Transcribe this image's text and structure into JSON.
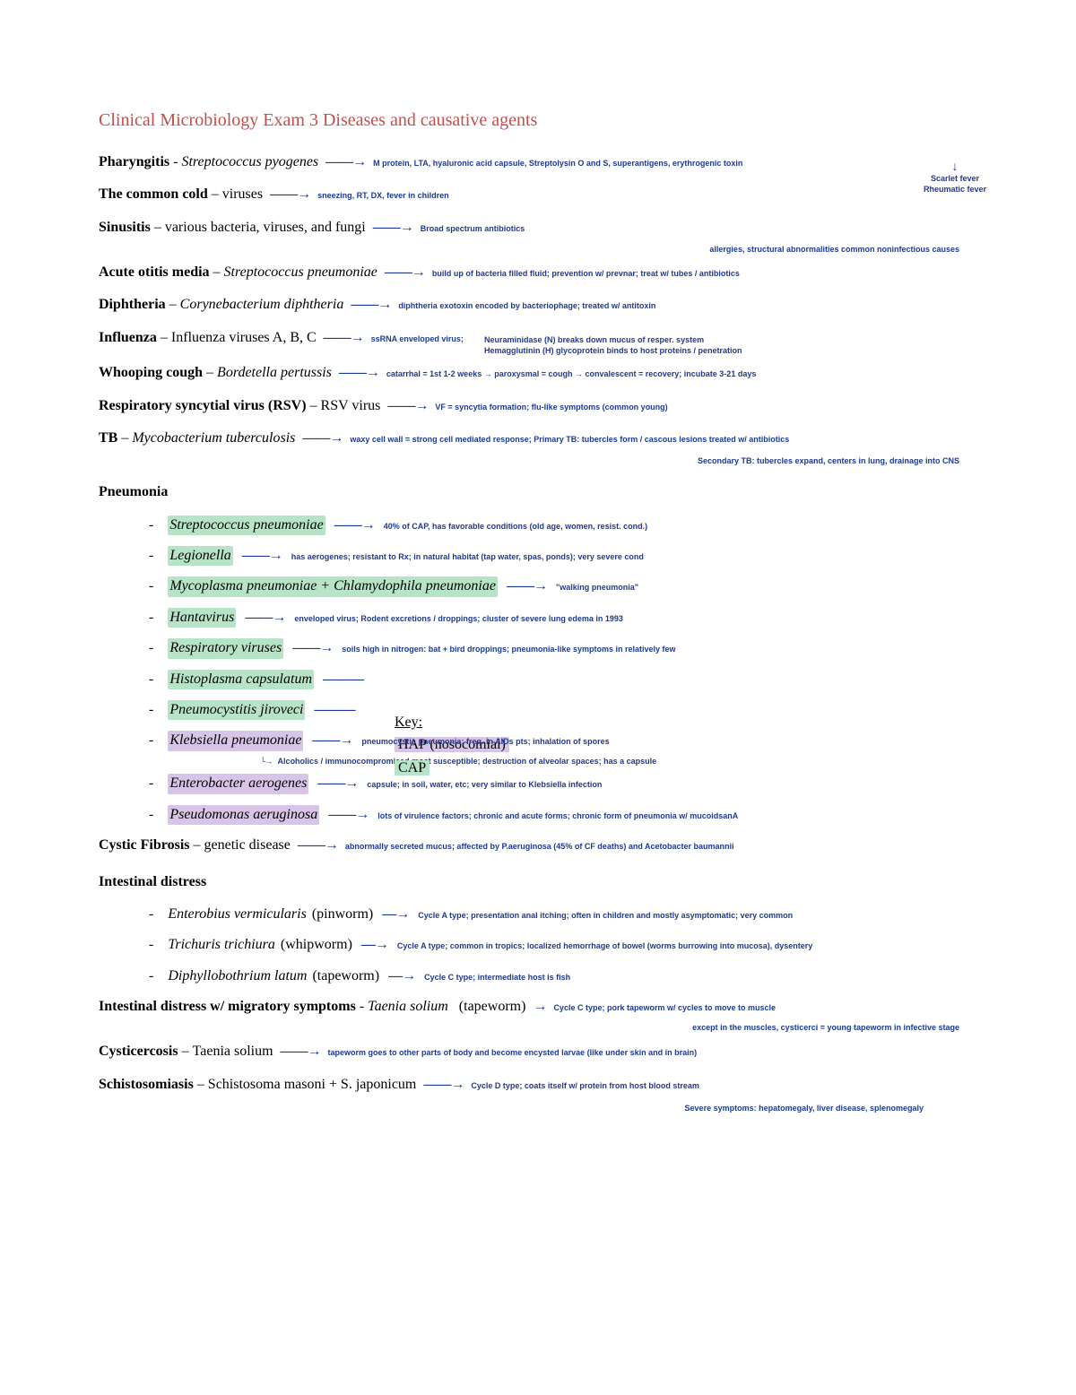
{
  "title": "Clinical Microbiology Exam 3 Diseases and causative agents",
  "side_fever": {
    "line1": "Scarlet fever",
    "line2": "Rheumatic fever"
  },
  "entries": [
    {
      "disease": "Pharyngitis",
      "sep": " - ",
      "agent": "Streptococcus pyogenes",
      "italic": true,
      "note": "M protein, LTA, hyaluronic acid capsule, Streptolysin O and S, superantigens, erythrogenic toxin"
    },
    {
      "disease": "The common cold",
      "sep": " – ",
      "agent": "viruses",
      "italic": false,
      "note": "sneezing, RT, DX, fever in children"
    },
    {
      "disease": "Sinusitis",
      "sep": " – ",
      "agent": "various bacteria, viruses, and fungi",
      "italic": false,
      "note": "Broad spectrum antibiotics",
      "note2": "allergies, structural abnormalities common noninfectious causes"
    },
    {
      "disease": "Acute otitis media",
      "sep": " – ",
      "agent": "Streptococcus pneumoniae",
      "italic": true,
      "note": "build up of bacteria filled fluid; prevention w/ prevnar; treat w/ tubes / antibiotics"
    },
    {
      "disease": "Diphtheria",
      "sep": " – ",
      "agent": "Corynebacterium diphtheria",
      "italic": true,
      "note": "diphtheria exotoxin encoded by bacteriophage; treated w/ antitoxin"
    },
    {
      "disease": "Influenza",
      "sep": " – ",
      "agent": "Influenza viruses A, B, C",
      "italic": false,
      "note": "ssRNA enveloped virus;",
      "noteTop": "Neuraminidase (N) breaks down mucus of resper. system",
      "note2": "Hemagglutinin (H) glycoprotein binds to host proteins / penetration"
    },
    {
      "disease": "Whooping cough",
      "sep": " – ",
      "agent": "Bordetella pertussis",
      "italic": true,
      "note": "catarrhal = 1st 1-2 weeks → paroxysmal = cough → convalescent = recovery; incubate 3-21 days"
    },
    {
      "disease": "Respiratory syncytial virus (RSV)",
      "sep": " – ",
      "agent": "RSV virus",
      "italic": false,
      "note": "VF = syncytia formation; flu-like symptoms (common young)"
    },
    {
      "disease": "TB",
      "sep": " – ",
      "agent": "Mycobacterium tuberculosis",
      "italic": true,
      "note": "waxy cell wall = strong cell mediated response; Primary TB: tubercles form / cascous lesions treated w/ antibiotics",
      "note2": "Secondary TB: tubercles expand, centers in lung, drainage into CNS"
    }
  ],
  "pneumonia_head": "Pneumonia",
  "pneumonia": [
    {
      "agent": "Streptococcus pneumoniae",
      "hl": "green",
      "note": "40% of CAP, has favorable conditions (old age, women, resist. cond.)"
    },
    {
      "agent": "Legionella",
      "hl": "green",
      "note": "has aerogenes; resistant to Rx; in natural habitat (tap water, spas, ponds); very severe cond"
    },
    {
      "agent": "Mycoplasma pneumoniae + Chlamydophila pneumoniae",
      "hl": "green",
      "note": "\"walking pneumonia\""
    },
    {
      "agent": "Hantavirus",
      "hl": "green",
      "note": "enveloped virus; Rodent excretions / droppings; cluster of severe lung edema in 1993"
    },
    {
      "agent": "Respiratory viruses",
      "hl": "green",
      "note": "soils high in nitrogen: bat + bird droppings; pneumonia-like symptoms in relatively few"
    },
    {
      "agent": "Histoplasma capsulatum",
      "hl": "green",
      "note": ""
    },
    {
      "agent": "Pneumocystitis jiroveci",
      "hl": "green",
      "note": ""
    },
    {
      "agent": "Klebsiella pneumoniae",
      "hl": "purple",
      "note": "pneumocystic pneumonia; freq. in AIDs pts; inhalation of spores",
      "note2": "Alcoholics / immunocompromised most susceptible; destruction of alveolar spaces; has a capsule"
    },
    {
      "agent": "Enterobacter aerogenes",
      "hl": "purple",
      "note": "capsule; in soil, water, etc; very similar to Klebsiella infection"
    },
    {
      "agent": "Pseudomonas aeruginosa",
      "hl": "purple",
      "note": "lots of virulence factors; chronic and acute forms; chronic form of pneumonia w/ mucoidsanA"
    }
  ],
  "key": {
    "head": "Key:",
    "hap": "HAP (nosocomial)",
    "cap": "CAP"
  },
  "cf": {
    "disease": "Cystic Fibrosis",
    "sep": " – ",
    "agent": "genetic disease",
    "note": "abnormally secreted mucus; affected by P.aeruginosa (45% of CF deaths) and Acetobacter baumannii"
  },
  "intest_head": "Intestinal distress",
  "intestinal": [
    {
      "agent": "Enterobius vermicularis",
      "paren": "(pinworm)",
      "note": "Cycle A type; presentation anal itching; often in children and mostly asymptomatic; very common"
    },
    {
      "agent": "Trichuris trichiura",
      "paren": "(whipworm)",
      "note": "Cycle A type; common in tropics; localized hemorrhage of bowel (worms burrowing into mucosa), dysentery"
    },
    {
      "agent": "Diphyllobothrium latum",
      "paren": "(tapeworm)",
      "note": "Cycle C type; intermediate host is fish"
    }
  ],
  "migratory": {
    "disease": "Intestinal distress w/ migratory symptoms",
    "sep": " - ",
    "agent": "Taenia solium",
    "paren": "(tapeworm)",
    "note": "Cycle C type; pork tapeworm w/ cycles to move to muscle",
    "note2": "except in the muscles, cysticerci = young tapeworm in infective stage"
  },
  "cyst": {
    "disease": "Cysticercosis",
    "sep": " – ",
    "agent": "Taenia solium",
    "note": "tapeworm goes to other parts of body and become encysted larvae (like under skin and in brain)"
  },
  "schisto": {
    "disease": "Schistosomiasis",
    "sep": " – ",
    "agent": "Schistosoma masoni + S. japonicum",
    "note": "Cycle D type; coats itself w/ protein from host blood stream",
    "note2": "Severe symptoms: hepatomegaly, liver disease, splenomegaly"
  }
}
